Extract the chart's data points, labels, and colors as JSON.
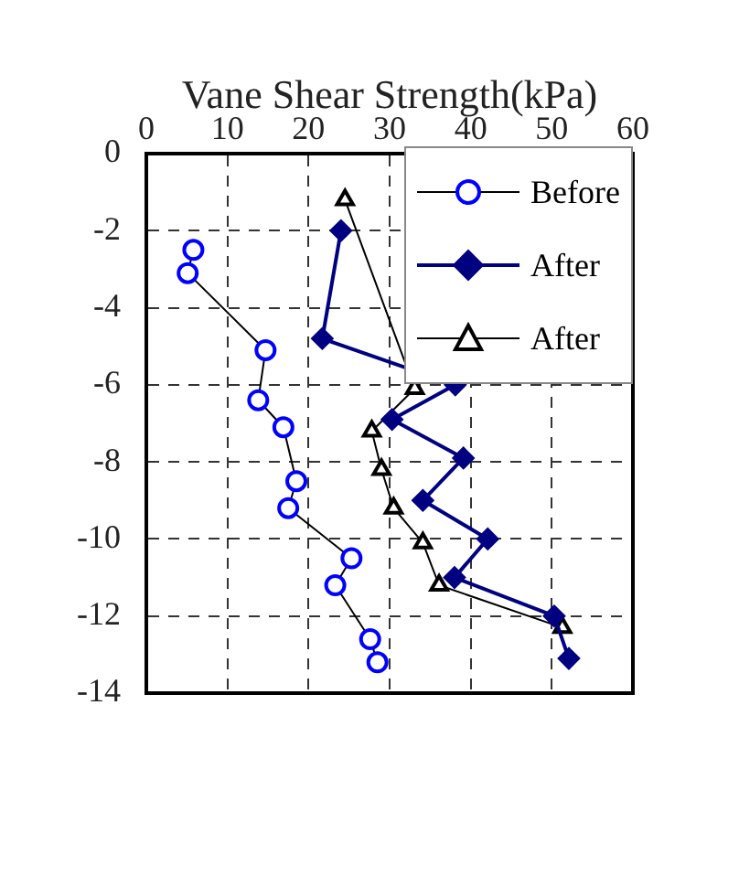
{
  "chart_data": {
    "type": "line",
    "xlabel": "Vane Shear Strength(kPa)",
    "xlim": [
      0,
      60
    ],
    "xticks": [
      0,
      10,
      20,
      30,
      40,
      50,
      60
    ],
    "ylim": [
      -14,
      0
    ],
    "yticks": [
      -14,
      -12,
      -10,
      -8,
      -6,
      -4,
      -2,
      0
    ],
    "grid": true,
    "legend": "top right",
    "series": [
      {
        "name": "Before",
        "color": "#0000ff",
        "marker": "circle",
        "x": [
          5.8,
          5.1,
          14.7,
          13.8,
          16.9,
          18.5,
          17.5,
          25.3,
          23.3,
          27.6,
          28.5
        ],
        "values": [
          -2.5,
          -3.1,
          -5.1,
          -6.4,
          -7.1,
          -8.5,
          -9.2,
          -10.5,
          -11.2,
          -12.6,
          -13.2
        ]
      },
      {
        "name": "After",
        "color": "#000080",
        "marker": "diamond",
        "x": [
          24,
          21.7,
          38.1,
          30.3,
          39.1,
          34.1,
          42.1,
          38,
          50.3,
          52.1
        ],
        "values": [
          -2,
          -4.8,
          -6,
          -6.9,
          -7.9,
          -9,
          -10,
          -11,
          -12,
          -13.1
        ]
      },
      {
        "name": "After",
        "color": "#000000",
        "marker": "triangle",
        "x": [
          24.5,
          33.1,
          27.8,
          29,
          30.5,
          34.1,
          36.1,
          51.3
        ],
        "values": [
          -1.2,
          -6.1,
          -7.2,
          -8.2,
          -9.2,
          -10.1,
          -11.2,
          -12.3
        ]
      }
    ]
  }
}
